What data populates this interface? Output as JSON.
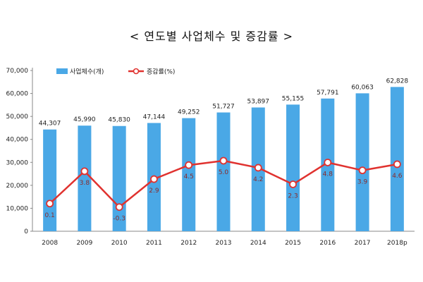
{
  "chart_data": {
    "type": "bar",
    "title": "< 연도별  사업체수  및  증감률 >",
    "categories": [
      "2008",
      "2009",
      "2010",
      "2011",
      "2012",
      "2013",
      "2014",
      "2015",
      "2016",
      "2017",
      "2018p"
    ],
    "ylim": [
      0,
      70000
    ],
    "yticks": [
      "0",
      "10,000",
      "20,000",
      "30,000",
      "40,000",
      "50,000",
      "60,000",
      "70,000"
    ],
    "grid": false,
    "legend_position": "top-left",
    "series": [
      {
        "name": "사업체수(개)",
        "type": "bar",
        "color": "#4aa8e6",
        "values": [
          44307,
          45990,
          45830,
          47144,
          49252,
          51727,
          53897,
          55155,
          57791,
          60063,
          62828
        ],
        "labels": [
          "44,307",
          "45,990",
          "45,830",
          "47,144",
          "49,252",
          "51,727",
          "53,897",
          "55,155",
          "57,791",
          "60,063",
          "62,828"
        ]
      },
      {
        "name": "증감률(%)",
        "type": "line",
        "color": "#e0322f",
        "values": [
          0.1,
          3.8,
          -0.3,
          2.9,
          4.5,
          5.0,
          4.2,
          2.3,
          4.8,
          3.9,
          4.6
        ],
        "labels": [
          "0.1",
          "3.8",
          "-0.3",
          "2.9",
          "4.5",
          "5.0",
          "4.2",
          "2.3",
          "4.8",
          "3.9",
          "4.6"
        ]
      }
    ]
  }
}
